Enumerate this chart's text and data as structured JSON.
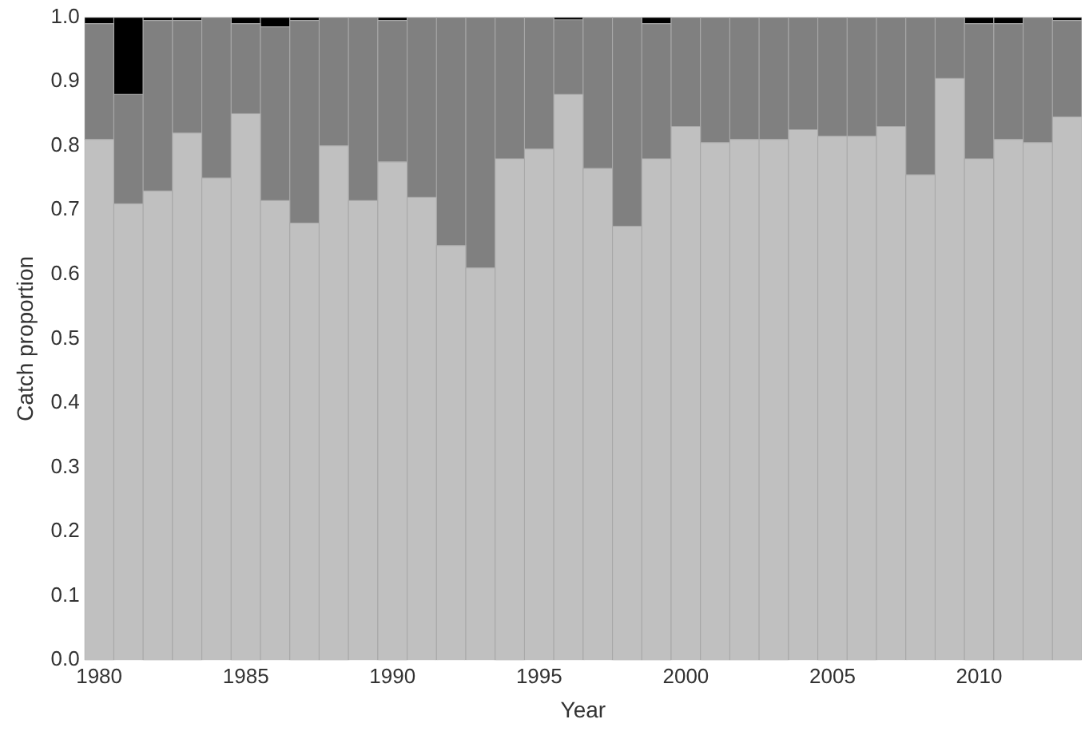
{
  "chart_data": {
    "type": "bar",
    "stacked": true,
    "xlabel": "Year",
    "ylabel": "Catch proportion",
    "categories": [
      "1980",
      null,
      null,
      null,
      null,
      "1985",
      null,
      null,
      null,
      null,
      "1990",
      null,
      null,
      null,
      null,
      "1995",
      null,
      null,
      null,
      null,
      "2000",
      null,
      null,
      null,
      null,
      "2005",
      null,
      null,
      null,
      null,
      "2010",
      null,
      null,
      null
    ],
    "series": [
      {
        "color": "#c0c0c0",
        "values": [
          0.81,
          0.71,
          0.73,
          0.82,
          0.75,
          0.85,
          0.715,
          0.68,
          0.8,
          0.715,
          0.775,
          0.72,
          0.645,
          0.61,
          0.78,
          0.795,
          0.88,
          0.765,
          0.675,
          0.78,
          0.83,
          0.805,
          0.81,
          0.81,
          0.825,
          0.815,
          0.815,
          0.83,
          0.755,
          0.905,
          0.78,
          0.81,
          0.805,
          0.845
        ]
      },
      {
        "color": "#808080",
        "values": [
          0.18,
          0.17,
          0.265,
          0.175,
          0.25,
          0.14,
          0.27,
          0.315,
          0.2,
          0.285,
          0.22,
          0.28,
          0.355,
          0.39,
          0.22,
          0.205,
          0.116,
          0.235,
          0.325,
          0.21,
          0.17,
          0.195,
          0.19,
          0.19,
          0.175,
          0.185,
          0.185,
          0.17,
          0.245,
          0.095,
          0.21,
          0.18,
          0.195,
          0.15
        ]
      },
      {
        "color": "#000000",
        "values": [
          0.01,
          0.12,
          0.005,
          0.005,
          0,
          0.01,
          0.015,
          0.005,
          0,
          0,
          0.005,
          0,
          0,
          0,
          0,
          0,
          0.004,
          0,
          0,
          0.01,
          0,
          0,
          0,
          0,
          0,
          0,
          0,
          0,
          0,
          0,
          0.01,
          0.01,
          0,
          0.005
        ]
      }
    ],
    "ylim": [
      0,
      1
    ],
    "yticks": [
      {
        "value": 0,
        "label": "0.0"
      },
      {
        "value": 0.1,
        "label": "0.1"
      },
      {
        "value": 0.2,
        "label": "0.2"
      },
      {
        "value": 0.3,
        "label": "0.3"
      },
      {
        "value": 0.4,
        "label": "0.4"
      },
      {
        "value": 0.5,
        "label": "0.5"
      },
      {
        "value": 0.6,
        "label": "0.6"
      },
      {
        "value": 0.7,
        "label": "0.7"
      },
      {
        "value": 0.8,
        "label": "0.8"
      },
      {
        "value": 0.9,
        "label": "0.9"
      },
      {
        "value": 1,
        "label": "1.0"
      }
    ],
    "grid": false,
    "legend": false
  }
}
